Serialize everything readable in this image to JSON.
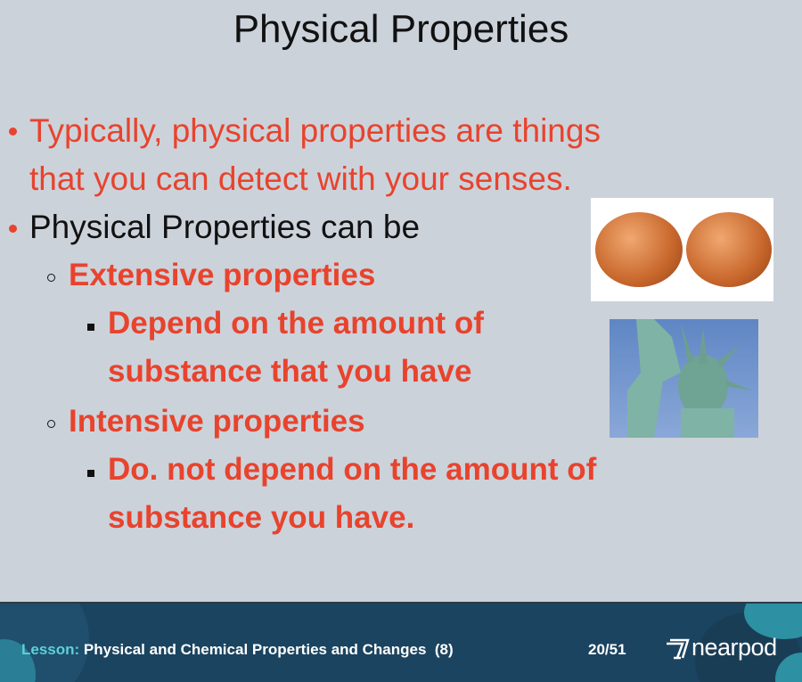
{
  "slide": {
    "title": "Physical Properties",
    "bullets": [
      {
        "line1": "Typically, physical properties are things",
        "line2": "that you can detect with your senses."
      },
      {
        "text": "Physical Properties can be"
      }
    ],
    "sub_items": [
      {
        "heading": "Extensive properties",
        "detail_line1": "Depend on the amount of",
        "detail_line2": "substance that you have"
      },
      {
        "heading": "Intensive properties",
        "detail_line1": "Do. not depend on the amount of",
        "detail_line2": "substance you have."
      }
    ],
    "images": [
      "penny-coins",
      "statue-of-liberty"
    ]
  },
  "footer": {
    "lesson_label": "Lesson:",
    "lesson_title": "Physical and Chemical Properties and Changes  (8)",
    "page_counter": "20/51",
    "brand": "nearpod",
    "colors": {
      "bar": "#1b4460",
      "accent": "#5ed0d8"
    }
  }
}
